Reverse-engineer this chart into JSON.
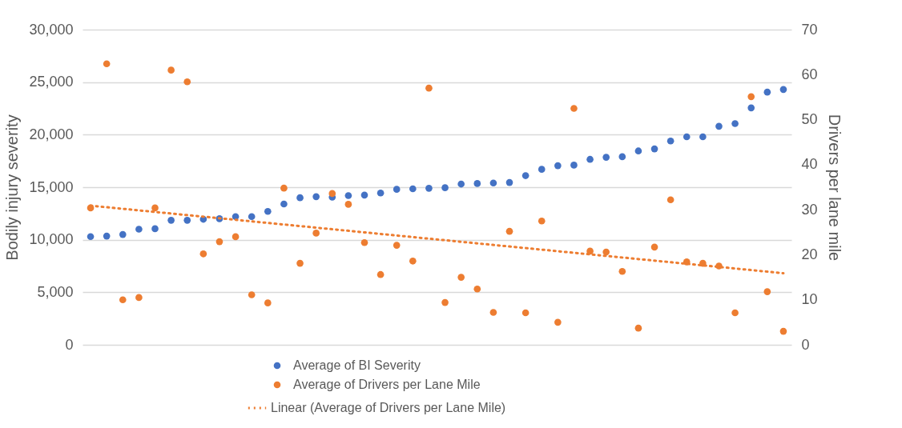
{
  "chart_data": {
    "type": "scatter",
    "categories": [
      null,
      null,
      null,
      null,
      null,
      null,
      null,
      null,
      null,
      null,
      null,
      null,
      null,
      null,
      null,
      null,
      null,
      null,
      null,
      null,
      null,
      null,
      null,
      null,
      null,
      null,
      null,
      null,
      null,
      null,
      null,
      null,
      null,
      null,
      null,
      null,
      null,
      null,
      null,
      null,
      null,
      null,
      null,
      null
    ],
    "ylabel": "Bodily injury severity",
    "y2label": "Drivers per lane mile",
    "ylim": [
      0,
      30000
    ],
    "yticks": [
      0,
      {
        "value": 5000,
        "label": "5,000"
      },
      {
        "value": 10000,
        "label": "10,000"
      },
      {
        "value": 15000,
        "label": "15,000"
      },
      {
        "value": 20000,
        "label": "20,000"
      },
      {
        "value": 25000,
        "label": "25,000"
      },
      {
        "value": 30000,
        "label": "30,000"
      }
    ],
    "y2lim": [
      0,
      70
    ],
    "y2ticks": [
      0,
      10,
      20,
      30,
      40,
      50,
      60,
      70
    ],
    "grid": "y",
    "legend": "bottom",
    "marker": "circle",
    "series": [
      {
        "name": "Average of BI Severity",
        "color": "#4472c4",
        "values": [
          10300,
          10350,
          10500,
          11000,
          11050,
          11850,
          11850,
          11950,
          12000,
          12200,
          12200,
          12700,
          13400,
          14000,
          14100,
          14050,
          14200,
          14250,
          14450,
          14800,
          14850,
          14900,
          14950,
          15300,
          15350,
          15400,
          15450,
          16100,
          16700,
          17050,
          17100,
          17650,
          17850,
          17900,
          18450,
          18650,
          19400,
          19800,
          19800,
          20800,
          21050,
          22550,
          24050,
          24300
        ]
      },
      {
        "name": "Average of Drivers per Lane Mile",
        "axis": "y2",
        "color": "#ed7d31",
        "values": [
          30.4,
          62.4,
          10.0,
          10.5,
          30.4,
          61.0,
          58.4,
          20.2,
          22.9,
          24.0,
          11.1,
          9.3,
          34.8,
          18.1,
          24.8,
          33.6,
          31.2,
          22.7,
          15.6,
          22.1,
          18.6,
          57.0,
          9.4,
          15.0,
          12.4,
          7.2,
          25.2,
          7.1,
          27.5,
          5.0,
          52.5,
          20.8,
          20.6,
          16.3,
          3.7,
          21.7,
          32.2,
          18.4,
          18.1,
          17.5,
          7.1,
          55.1,
          11.8,
          3.0
        ]
      },
      {
        "name": "Linear (Average of Drivers per Lane Mile)",
        "type": "line",
        "axis": "y2",
        "line_style": "dotted",
        "marker": "none",
        "color": "#ed7d31",
        "values": [
          30.9,
          null,
          null,
          null,
          null,
          null,
          null,
          null,
          null,
          null,
          null,
          null,
          null,
          null,
          null,
          null,
          null,
          null,
          null,
          null,
          null,
          null,
          null,
          null,
          null,
          null,
          null,
          null,
          null,
          null,
          null,
          null,
          null,
          null,
          null,
          null,
          null,
          null,
          null,
          null,
          null,
          null,
          null,
          15.9
        ]
      }
    ]
  }
}
